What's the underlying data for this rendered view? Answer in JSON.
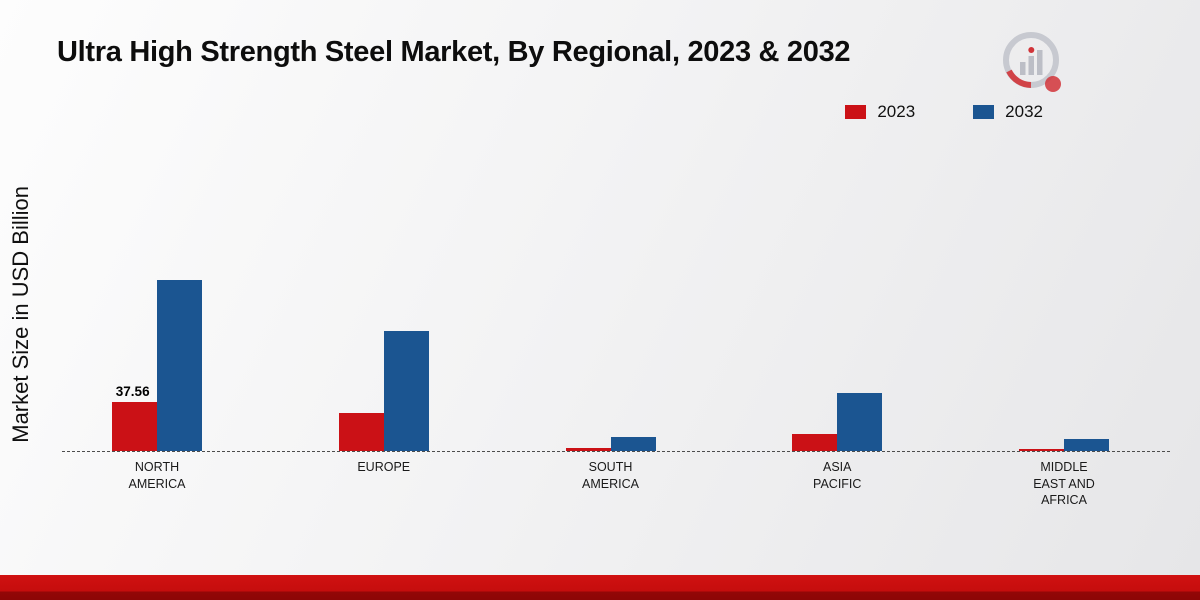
{
  "chart_data": {
    "type": "bar",
    "title": "Ultra High Strength Steel Market, By Regional, 2023 & 2032",
    "ylabel": "Market Size in USD Billion",
    "xlabel": "",
    "categories": [
      "NORTH AMERICA",
      "EUROPE",
      "SOUTH AMERICA",
      "ASIA PACIFIC",
      "MIDDLE EAST AND AFRICA"
    ],
    "series": [
      {
        "name": "2023",
        "color": "#cb1116",
        "values": [
          37.56,
          29,
          2.5,
          13,
          1.5
        ]
      },
      {
        "name": "2032",
        "color": "#1b5591",
        "values": [
          131.5,
          92,
          11,
          44.5,
          9
        ]
      }
    ],
    "annotations": [
      {
        "series": "2023",
        "category": "NORTH AMERICA",
        "text": "37.56"
      }
    ],
    "ylim": [
      0,
      140
    ],
    "grid": false,
    "baseline_style": "dashed",
    "legend_position": "top-right"
  },
  "branding": {
    "logo": "magnifier-bar-chart-logo",
    "footer_band_color": "#c90d0d",
    "accent_red": "#cb1116",
    "accent_blue": "#1b5591"
  }
}
